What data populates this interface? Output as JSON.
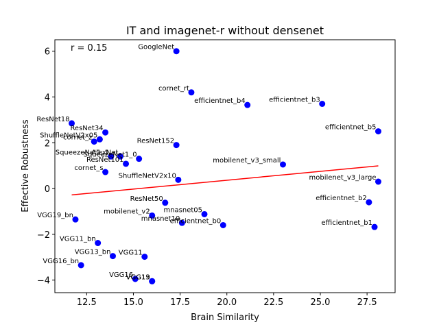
{
  "chart_data": {
    "type": "scatter",
    "title": "IT and imagenet-r without densenet",
    "xlabel": "Brain Similarity",
    "ylabel": "Effective Robustness",
    "xlim": [
      10.8,
      29.0
    ],
    "ylim": [
      -4.55,
      6.5
    ],
    "xticks": [
      12.5,
      15.0,
      17.5,
      20.0,
      22.5,
      25.0,
      27.5
    ],
    "xtick_labels": [
      "12.5",
      "15.0",
      "17.5",
      "20.0",
      "22.5",
      "25.0",
      "27.5"
    ],
    "yticks": [
      -4,
      -2,
      0,
      2,
      4,
      6
    ],
    "ytick_labels": [
      "−4",
      "−2",
      "0",
      "2",
      "4",
      "6"
    ],
    "annotation": "r = 0.15",
    "point_color": "#0000ff",
    "fit_color": "#ff0000",
    "fit_line": [
      {
        "x": 11.7,
        "y": -0.28
      },
      {
        "x": 28.1,
        "y": 0.99
      }
    ],
    "points": [
      {
        "label": "GoogleNet",
        "x": 17.3,
        "y": 6.0
      },
      {
        "label": "cornet_rt",
        "x": 18.1,
        "y": 4.2
      },
      {
        "label": "efficientnet_b4",
        "x": 21.1,
        "y": 3.65
      },
      {
        "label": "efficientnet_b3",
        "x": 25.1,
        "y": 3.7
      },
      {
        "label": "ResNet18",
        "x": 11.7,
        "y": 2.85
      },
      {
        "label": "efficientnet_b5",
        "x": 28.1,
        "y": 2.5
      },
      {
        "label": "ResNet34",
        "x": 13.5,
        "y": 2.45
      },
      {
        "label": "ShuffleNetV2x05",
        "x": 13.2,
        "y": 2.15
      },
      {
        "label": "cornet_z",
        "x": 12.9,
        "y": 2.05
      },
      {
        "label": "ResNet152",
        "x": 17.3,
        "y": 1.9
      },
      {
        "label": "SqueezeNet1_1",
        "x": 13.8,
        "y": 1.4
      },
      {
        "label": "AlexNet",
        "x": 14.3,
        "y": 1.4
      },
      {
        "label": "SqueezeNet1_0",
        "x": 15.3,
        "y": 1.3
      },
      {
        "label": "ResNet101",
        "x": 14.6,
        "y": 1.08
      },
      {
        "label": "mobilenet_v3_small",
        "x": 23.0,
        "y": 1.05
      },
      {
        "label": "cornet_s",
        "x": 13.5,
        "y": 0.72
      },
      {
        "label": "ShuffleNetV2x10",
        "x": 17.4,
        "y": 0.38
      },
      {
        "label": "mobilenet_v3_large",
        "x": 28.1,
        "y": 0.3
      },
      {
        "label": "ResNet50",
        "x": 16.7,
        "y": -0.62
      },
      {
        "label": "efficientnet_b2",
        "x": 27.6,
        "y": -0.6
      },
      {
        "label": "mnasnet05",
        "x": 18.8,
        "y": -1.12
      },
      {
        "label": "mobilenet_v2",
        "x": 16.0,
        "y": -1.18
      },
      {
        "label": "VGG19_bn",
        "x": 11.9,
        "y": -1.35
      },
      {
        "label": "mnasnet10",
        "x": 17.6,
        "y": -1.5
      },
      {
        "label": "efficientnet_b0",
        "x": 19.8,
        "y": -1.6
      },
      {
        "label": "efficientnet_b1",
        "x": 27.9,
        "y": -1.68
      },
      {
        "label": "VGG11_bn",
        "x": 13.1,
        "y": -2.38
      },
      {
        "label": "VGG13_bn",
        "x": 13.9,
        "y": -2.95
      },
      {
        "label": "VGG11",
        "x": 15.6,
        "y": -2.98
      },
      {
        "label": "VGG16_bn",
        "x": 12.2,
        "y": -3.35
      },
      {
        "label": "VGG16",
        "x": 15.1,
        "y": -3.95
      },
      {
        "label": "VGG19",
        "x": 16.0,
        "y": -4.05
      },
      {
        "label": "VGG13",
        "x": 16.0,
        "y": -4.05
      }
    ]
  }
}
